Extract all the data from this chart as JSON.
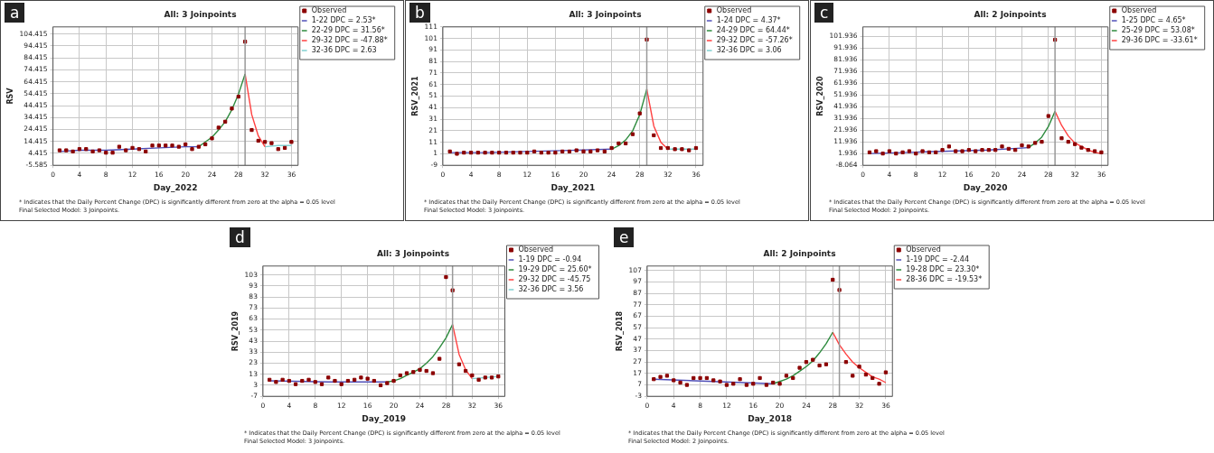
{
  "chart_data": [
    {
      "type": "scatter",
      "title": "All: 3 Joinpoints",
      "xlabel": "Day_2022",
      "ylabel": "RSV",
      "annotations": [
        "a",
        "* Indicates that the Daily Percent Change (DPC) is significantly different from zero at the alpha = 0.05 level",
        "Final Selected Model: 3 Joinpoints."
      ],
      "x": [
        1,
        2,
        3,
        4,
        5,
        6,
        7,
        8,
        9,
        10,
        11,
        12,
        13,
        14,
        15,
        16,
        17,
        18,
        19,
        20,
        21,
        22,
        23,
        24,
        25,
        26,
        27,
        28,
        29,
        30,
        31,
        32,
        33,
        34,
        35,
        36
      ],
      "xlim": [
        0,
        37
      ],
      "xticks": [
        0,
        4,
        8,
        12,
        16,
        20,
        24,
        28,
        32,
        36
      ],
      "ylim": [
        -5.585,
        110.415
      ],
      "yticks": [
        -5.585,
        4.415,
        14.415,
        24.415,
        34.415,
        44.415,
        54.415,
        64.415,
        74.415,
        84.415,
        94.415,
        104.415
      ],
      "grid": true,
      "legend": "right",
      "line_style": "solid",
      "ref_lines": [
        {
          "axis": "x",
          "value": 29,
          "color": "#999999"
        }
      ],
      "series": [
        {
          "name": "Observed",
          "type": "scatter",
          "marker": "square",
          "color": "#8b0000",
          "values": [
            7,
            7,
            6,
            8,
            8,
            6,
            7,
            5,
            5,
            10,
            7,
            9,
            8,
            6,
            11,
            11,
            11,
            11,
            10,
            12,
            8,
            10,
            12,
            17,
            26,
            31,
            42,
            52,
            98,
            24,
            15,
            14,
            13,
            8,
            9,
            14
          ]
        },
        {
          "name": "1-22 DPC = 2.53*",
          "type": "line",
          "color": "#5050b8",
          "x": [
            1,
            4,
            8,
            12,
            16,
            20,
            22
          ],
          "values": [
            6,
            7,
            7,
            8,
            9,
            10,
            10
          ]
        },
        {
          "name": "22-29 DPC = 31.56*",
          "type": "line",
          "color": "#2e8b3e",
          "x": [
            22,
            23,
            24,
            25,
            26,
            27,
            28,
            29
          ],
          "values": [
            10,
            14,
            18,
            24,
            31,
            41,
            54,
            71
          ]
        },
        {
          "name": "29-32 DPC = -47.88*",
          "type": "line",
          "color": "#ff4040",
          "x": [
            29,
            30,
            31,
            32
          ],
          "values": [
            71,
            37,
            19,
            10
          ]
        },
        {
          "name": "32-36 DPC = 2.63",
          "type": "line",
          "color": "#80d0d0",
          "x": [
            32,
            34,
            36
          ],
          "values": [
            10,
            11,
            11
          ]
        }
      ]
    },
    {
      "type": "scatter",
      "title": "All: 3 Joinpoints",
      "xlabel": "Day_2021",
      "ylabel": "RSV_2021",
      "annotations": [
        "b",
        "* Indicates that the Daily Percent Change (DPC) is significantly different from zero at the alpha = 0.05 level",
        "Final Selected Model: 3 Joinpoints."
      ],
      "x": [
        1,
        2,
        3,
        4,
        5,
        6,
        7,
        8,
        9,
        10,
        11,
        12,
        13,
        14,
        15,
        16,
        17,
        18,
        19,
        20,
        21,
        22,
        23,
        24,
        25,
        26,
        27,
        28,
        29,
        30,
        31,
        32,
        33,
        34,
        35,
        36
      ],
      "xlim": [
        0,
        37
      ],
      "xticks": [
        0,
        4,
        8,
        12,
        16,
        20,
        24,
        28,
        32,
        36
      ],
      "ylim": [
        -9,
        111
      ],
      "yticks": [
        -9,
        1,
        11,
        21,
        31,
        41,
        51,
        61,
        71,
        81,
        91,
        101,
        111
      ],
      "grid": true,
      "legend": "right",
      "line_style": "solid",
      "ref_lines": [
        {
          "axis": "x",
          "value": 29,
          "color": "#999999"
        }
      ],
      "series": [
        {
          "name": "Observed",
          "type": "scatter",
          "marker": "square",
          "color": "#8b0000",
          "values": [
            3,
            1,
            2,
            2,
            2,
            2,
            2,
            2,
            2,
            2,
            2,
            2,
            3,
            2,
            2,
            2,
            3,
            3,
            4,
            3,
            3,
            4,
            3,
            6,
            10,
            10,
            18,
            36,
            100,
            17,
            6,
            6,
            5,
            5,
            4,
            6
          ]
        },
        {
          "name": "1-24 DPC = 4.37*",
          "type": "line",
          "color": "#5050b8",
          "x": [
            1,
            6,
            12,
            18,
            24
          ],
          "values": [
            2,
            2,
            3,
            4,
            5
          ]
        },
        {
          "name": "24-29 DPC = 64.44*",
          "type": "line",
          "color": "#2e8b3e",
          "x": [
            24,
            25,
            26,
            27,
            28,
            29
          ],
          "values": [
            5,
            8,
            13,
            21,
            35,
            57
          ]
        },
        {
          "name": "29-32 DPC = -57.26*",
          "type": "line",
          "color": "#ff4040",
          "x": [
            29,
            30,
            31,
            32
          ],
          "values": [
            57,
            25,
            11,
            5
          ]
        },
        {
          "name": "32-36 DPC = 3.06",
          "type": "line",
          "color": "#80d0d0",
          "x": [
            32,
            34,
            36
          ],
          "values": [
            5,
            5,
            5
          ]
        }
      ]
    },
    {
      "type": "scatter",
      "title": "All: 2 Joinpoints",
      "xlabel": "Day_2020",
      "ylabel": "RSV_2020",
      "annotations": [
        "c",
        "* Indicates that the Daily Percent Change (DPC) is significantly different from zero at the alpha = 0.05 level",
        "Final Selected Model: 2 Joinpoints."
      ],
      "x": [
        1,
        2,
        3,
        4,
        5,
        6,
        7,
        8,
        9,
        10,
        11,
        12,
        13,
        14,
        15,
        16,
        17,
        18,
        19,
        20,
        21,
        22,
        23,
        24,
        25,
        26,
        27,
        28,
        29,
        30,
        31,
        32,
        33,
        34,
        35,
        36
      ],
      "xlim": [
        0,
        37
      ],
      "xticks": [
        0,
        4,
        8,
        12,
        16,
        20,
        24,
        28,
        32,
        36
      ],
      "ylim": [
        -8.064,
        110
      ],
      "yticks": [
        -8.064,
        1.936,
        11.936,
        21.936,
        31.936,
        41.936,
        51.936,
        61.936,
        71.936,
        81.936,
        91.936,
        101.936
      ],
      "grid": true,
      "legend": "right",
      "line_style": "solid",
      "ref_lines": [
        {
          "axis": "x",
          "value": 29,
          "color": "#999999"
        }
      ],
      "series": [
        {
          "name": "Observed",
          "type": "scatter",
          "marker": "square",
          "color": "#8b0000",
          "values": [
            3,
            4,
            2,
            4,
            2,
            3,
            4,
            2,
            4,
            3,
            3,
            5,
            8,
            4,
            4,
            5,
            4,
            5,
            5,
            5,
            8,
            6,
            5,
            9,
            8,
            11,
            12,
            34,
            99,
            15,
            12,
            10,
            7,
            5,
            4,
            3
          ]
        },
        {
          "name": "1-25 DPC = 4.65*",
          "type": "line",
          "color": "#5050b8",
          "x": [
            1,
            7,
            13,
            19,
            25
          ],
          "values": [
            2,
            3,
            4,
            5,
            7
          ]
        },
        {
          "name": "25-29 DPC = 53.08*",
          "type": "line",
          "color": "#2e8b3e",
          "x": [
            25,
            26,
            27,
            28,
            29
          ],
          "values": [
            7,
            11,
            16,
            25,
            38
          ]
        },
        {
          "name": "29-36 DPC = -33.61*",
          "type": "line",
          "color": "#ff4040",
          "x": [
            29,
            30,
            31,
            32,
            33,
            34,
            35,
            36
          ],
          "values": [
            38,
            26,
            17,
            11,
            8,
            5,
            3,
            2
          ]
        }
      ]
    },
    {
      "type": "scatter",
      "title": "All: 3 Joinpoints",
      "xlabel": "Day_2019",
      "ylabel": "RSV_2019",
      "annotations": [
        "d",
        "* Indicates that the Daily Percent Change (DPC) is significantly different from zero at the alpha = 0.05 level",
        "Final Selected Model: 3 Joinpoints."
      ],
      "x": [
        1,
        2,
        3,
        4,
        5,
        6,
        7,
        8,
        9,
        10,
        11,
        12,
        13,
        14,
        15,
        16,
        17,
        18,
        19,
        20,
        21,
        22,
        23,
        24,
        25,
        26,
        27,
        28,
        29,
        30,
        31,
        32,
        33,
        34,
        35,
        36
      ],
      "xlim": [
        0,
        37
      ],
      "xticks": [
        0,
        4,
        8,
        12,
        16,
        20,
        24,
        28,
        32,
        36
      ],
      "ylim": [
        -7,
        111
      ],
      "yticks": [
        -7,
        3,
        13,
        23,
        33,
        43,
        53,
        63,
        73,
        83,
        93,
        103
      ],
      "grid": true,
      "legend": "right",
      "line_style": "solid",
      "ref_lines": [
        {
          "axis": "x",
          "value": 29,
          "color": "#999999"
        }
      ],
      "series": [
        {
          "name": "Observed",
          "type": "scatter",
          "marker": "square",
          "color": "#8b0000",
          "values": [
            8,
            6,
            8,
            7,
            4,
            7,
            8,
            6,
            4,
            10,
            7,
            4,
            7,
            8,
            10,
            9,
            7,
            3,
            5,
            7,
            12,
            14,
            15,
            17,
            16,
            14,
            27,
            101,
            89,
            22,
            16,
            12,
            8,
            10,
            10,
            11
          ]
        },
        {
          "name": "1-19 DPC = -0.94",
          "type": "line",
          "color": "#5050b8",
          "x": [
            1,
            10,
            19
          ],
          "values": [
            7,
            6,
            6
          ]
        },
        {
          "name": "19-29 DPC = 25.60*",
          "type": "line",
          "color": "#2e8b3e",
          "x": [
            19,
            20,
            21,
            22,
            23,
            24,
            25,
            26,
            27,
            28,
            29
          ],
          "values": [
            6,
            7,
            9,
            12,
            15,
            18,
            23,
            29,
            37,
            46,
            58
          ]
        },
        {
          "name": "29-32 DPC = -45.75",
          "type": "line",
          "color": "#ff4040",
          "x": [
            29,
            30,
            31,
            32
          ],
          "values": [
            58,
            31,
            17,
            9
          ]
        },
        {
          "name": "32-36 DPC = 3.56",
          "type": "line",
          "color": "#80d0d0",
          "x": [
            32,
            34,
            36
          ],
          "values": [
            9,
            10,
            11
          ]
        }
      ]
    },
    {
      "type": "scatter",
      "title": "All: 2 Joinpoints",
      "xlabel": "Day_2018",
      "ylabel": "RSV_2018",
      "annotations": [
        "e",
        "* Indicates that the Daily Percent Change (DPC) is significantly different from zero at the alpha = 0.05 level",
        "Final Selected Model: 2 Joinpoints."
      ],
      "x": [
        1,
        2,
        3,
        4,
        5,
        6,
        7,
        8,
        9,
        10,
        11,
        12,
        13,
        14,
        15,
        16,
        17,
        18,
        19,
        20,
        21,
        22,
        23,
        24,
        25,
        26,
        27,
        28,
        29,
        30,
        31,
        32,
        33,
        34,
        35,
        36
      ],
      "xlim": [
        0,
        37
      ],
      "xticks": [
        0,
        4,
        8,
        12,
        16,
        20,
        24,
        28,
        32,
        36
      ],
      "ylim": [
        -3,
        111
      ],
      "yticks": [
        -3,
        7,
        17,
        27,
        37,
        47,
        57,
        67,
        77,
        87,
        97,
        107
      ],
      "grid": true,
      "legend": "right",
      "line_style": "solid",
      "ref_lines": [
        {
          "axis": "x",
          "value": 29,
          "color": "#999999"
        }
      ],
      "series": [
        {
          "name": "Observed",
          "type": "scatter",
          "marker": "square",
          "color": "#8b0000",
          "values": [
            12,
            14,
            15,
            11,
            9,
            7,
            13,
            13,
            13,
            11,
            10,
            7,
            8,
            12,
            7,
            8,
            13,
            7,
            9,
            8,
            15,
            13,
            22,
            27,
            29,
            24,
            25,
            99,
            90,
            27,
            15,
            23,
            16,
            13,
            8,
            18
          ]
        },
        {
          "name": "1-19 DPC = -2.44",
          "type": "line",
          "color": "#5050b8",
          "x": [
            1,
            10,
            19
          ],
          "values": [
            12,
            10,
            8
          ]
        },
        {
          "name": "19-28 DPC = 23.30*",
          "type": "line",
          "color": "#2e8b3e",
          "x": [
            19,
            20,
            21,
            22,
            23,
            24,
            25,
            26,
            27,
            28
          ],
          "values": [
            8,
            10,
            12,
            15,
            19,
            23,
            28,
            35,
            43,
            53
          ]
        },
        {
          "name": "28-36 DPC = -19.53*",
          "type": "line",
          "color": "#ff4040",
          "x": [
            28,
            29,
            30,
            31,
            32,
            33,
            34,
            35,
            36
          ],
          "values": [
            53,
            42,
            34,
            27,
            22,
            18,
            14,
            12,
            9
          ]
        }
      ]
    }
  ]
}
